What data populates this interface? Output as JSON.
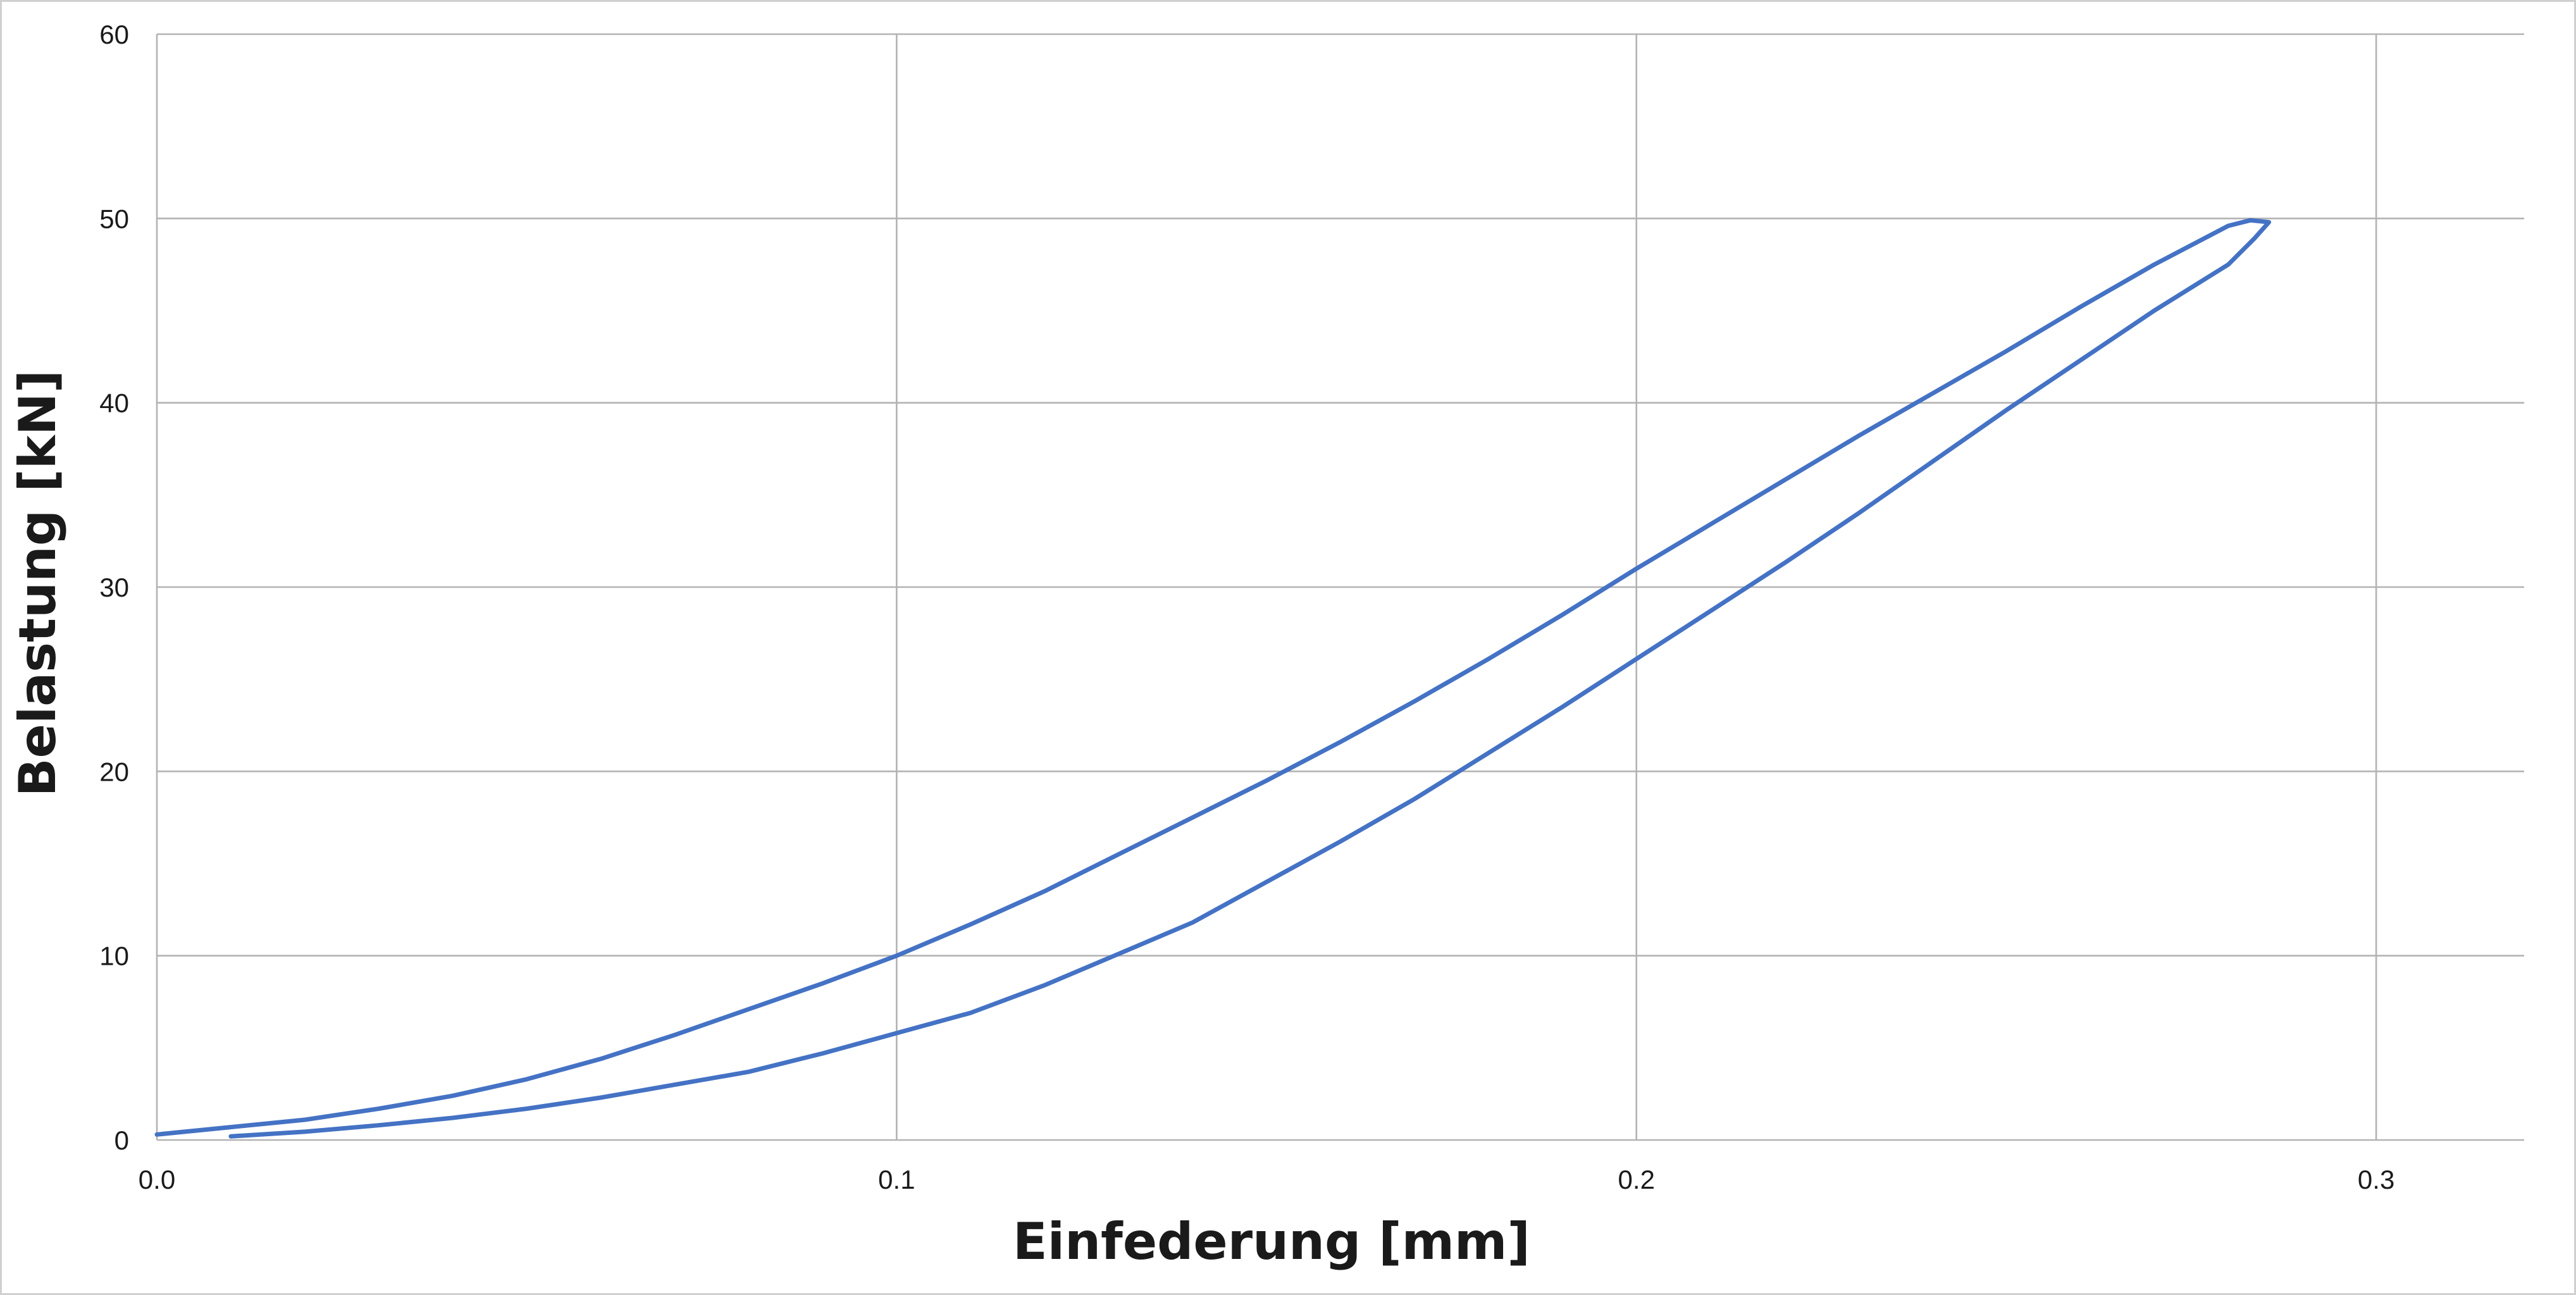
{
  "chart_data": {
    "type": "line",
    "title": "",
    "xlabel": "Einfederung [mm]",
    "ylabel": "Belastung [kN]",
    "xlim": [
      0.0,
      0.32
    ],
    "ylim": [
      0,
      60
    ],
    "x_ticks": [
      "0.0",
      "0.1",
      "0.2",
      "0.3"
    ],
    "x_tick_values": [
      0.0,
      0.1,
      0.2,
      0.3
    ],
    "y_ticks": [
      "0",
      "10",
      "20",
      "30",
      "40",
      "50",
      "60"
    ],
    "y_tick_values": [
      0,
      10,
      20,
      30,
      40,
      50,
      60
    ],
    "grid": true,
    "legend": "none",
    "series": [
      {
        "color": "#4472C4",
        "points": [
          [
            0.0,
            0.3
          ],
          [
            0.01,
            0.7
          ],
          [
            0.02,
            1.1
          ],
          [
            0.03,
            1.7
          ],
          [
            0.04,
            2.4
          ],
          [
            0.05,
            3.3
          ],
          [
            0.06,
            4.4
          ],
          [
            0.07,
            5.7
          ],
          [
            0.08,
            7.1
          ],
          [
            0.09,
            8.5
          ],
          [
            0.1,
            10.0
          ],
          [
            0.11,
            11.7
          ],
          [
            0.12,
            13.5
          ],
          [
            0.13,
            15.5
          ],
          [
            0.14,
            17.5
          ],
          [
            0.15,
            19.5
          ],
          [
            0.16,
            21.6
          ],
          [
            0.17,
            23.8
          ],
          [
            0.18,
            26.1
          ],
          [
            0.19,
            28.5
          ],
          [
            0.2,
            31.0
          ],
          [
            0.21,
            33.4
          ],
          [
            0.22,
            35.8
          ],
          [
            0.23,
            38.2
          ],
          [
            0.24,
            40.5
          ],
          [
            0.25,
            42.8
          ],
          [
            0.26,
            45.2
          ],
          [
            0.27,
            47.5
          ],
          [
            0.28,
            49.6
          ],
          [
            0.283,
            49.9
          ],
          [
            0.2855,
            49.8
          ],
          [
            0.2835,
            48.9
          ],
          [
            0.28,
            47.5
          ],
          [
            0.27,
            45.0
          ],
          [
            0.26,
            42.3
          ],
          [
            0.25,
            39.6
          ],
          [
            0.24,
            36.8
          ],
          [
            0.23,
            34.0
          ],
          [
            0.22,
            31.3
          ],
          [
            0.21,
            28.7
          ],
          [
            0.2,
            26.1
          ],
          [
            0.19,
            23.5
          ],
          [
            0.18,
            21.0
          ],
          [
            0.17,
            18.5
          ],
          [
            0.16,
            16.2
          ],
          [
            0.15,
            14.0
          ],
          [
            0.14,
            11.8
          ],
          [
            0.13,
            10.1
          ],
          [
            0.12,
            8.4
          ],
          [
            0.11,
            6.9
          ],
          [
            0.1,
            5.8
          ],
          [
            0.09,
            4.7
          ],
          [
            0.08,
            3.7
          ],
          [
            0.07,
            3.0
          ],
          [
            0.06,
            2.3
          ],
          [
            0.05,
            1.7
          ],
          [
            0.04,
            1.2
          ],
          [
            0.03,
            0.8
          ],
          [
            0.02,
            0.45
          ],
          [
            0.01,
            0.2
          ]
        ]
      }
    ]
  }
}
